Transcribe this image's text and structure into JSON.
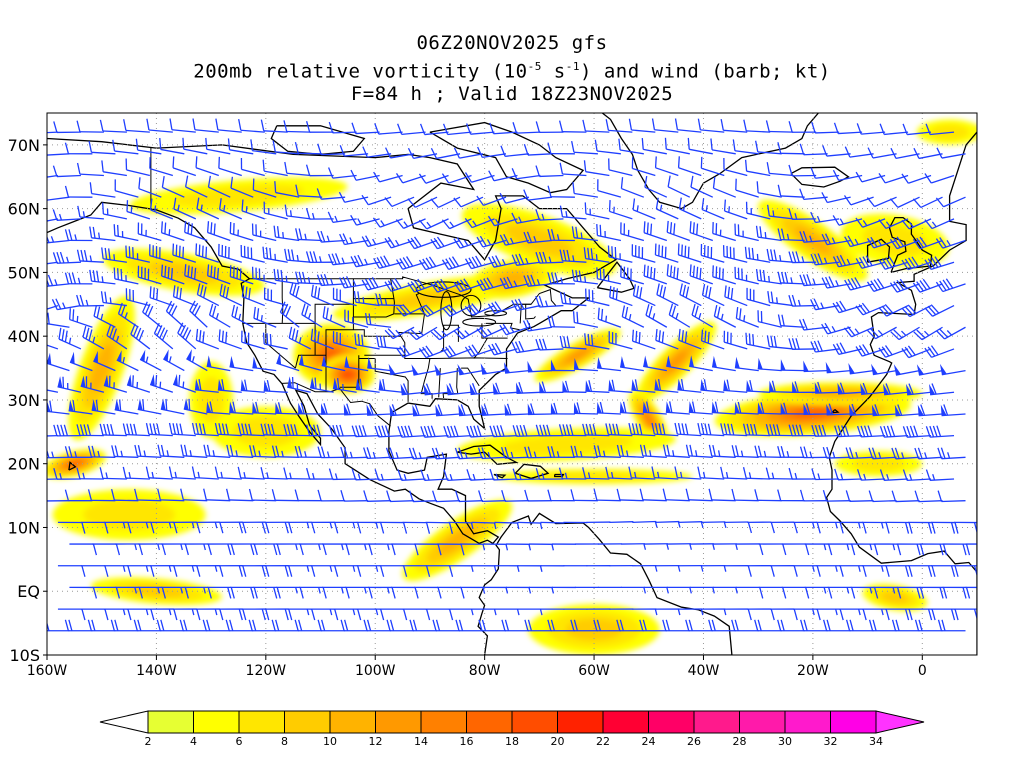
{
  "title": {
    "line1": "06Z20NOV2025 gfs",
    "line2_pre": "200mb relative vorticity (10",
    "line2_exp1": "-5",
    "line2_mid": " s",
    "line2_exp2": "-1",
    "line2_post": ") and wind (barb; kt)",
    "line3": "F=84 h ; Valid 18Z23NOV2025"
  },
  "map": {
    "lon_range": [
      -160,
      10
    ],
    "lat_range": [
      -10,
      75
    ],
    "lat_ticks": [
      {
        "value": 70,
        "label": "70N"
      },
      {
        "value": 60,
        "label": "60N"
      },
      {
        "value": 50,
        "label": "50N"
      },
      {
        "value": 40,
        "label": "40N"
      },
      {
        "value": 30,
        "label": "30N"
      },
      {
        "value": 20,
        "label": "20N"
      },
      {
        "value": 10,
        "label": "10N"
      },
      {
        "value": 0,
        "label": "EQ"
      },
      {
        "value": -10,
        "label": "10S"
      }
    ],
    "lon_ticks": [
      {
        "value": -160,
        "label": "160W"
      },
      {
        "value": -140,
        "label": "140W"
      },
      {
        "value": -120,
        "label": "120W"
      },
      {
        "value": -100,
        "label": "100W"
      },
      {
        "value": -80,
        "label": "80W"
      },
      {
        "value": -60,
        "label": "60W"
      },
      {
        "value": -40,
        "label": "40W"
      },
      {
        "value": -20,
        "label": "20W"
      },
      {
        "value": 0,
        "label": "0"
      }
    ],
    "barb_color": "#1f3fff",
    "coast_color": "#000000",
    "grid_color": "#9a9a9a"
  },
  "colorbar": {
    "levels": [
      "2",
      "4",
      "6",
      "8",
      "10",
      "12",
      "14",
      "16",
      "18",
      "20",
      "22",
      "24",
      "26",
      "28",
      "30",
      "32",
      "34"
    ],
    "colors": [
      "#ffffff",
      "#e6ff33",
      "#ffff00",
      "#ffe600",
      "#ffcc00",
      "#ffb300",
      "#ff9900",
      "#ff8000",
      "#ff6600",
      "#ff4d00",
      "#ff2200",
      "#ff0033",
      "#ff0066",
      "#ff1a8c",
      "#ff1aaa",
      "#ff1acc",
      "#ff00e6",
      "#ff33ff"
    ]
  },
  "vorticity_features": [
    {
      "lon": -108,
      "lat": 37,
      "rx": 7,
      "ry": 5,
      "rot": 0,
      "v": 16
    },
    {
      "lon": -105,
      "lat": 34,
      "rx": 5,
      "ry": 3,
      "rot": 0,
      "v": 18
    },
    {
      "lon": -155,
      "lat": 20,
      "rx": 6,
      "ry": 2,
      "rot": -15,
      "v": 16
    },
    {
      "lon": -135,
      "lat": 50,
      "rx": 15,
      "ry": 3,
      "rot": 10,
      "v": 8
    },
    {
      "lon": -125,
      "lat": 62,
      "rx": 20,
      "ry": 2.5,
      "rot": -5,
      "v": 6
    },
    {
      "lon": -150,
      "lat": 35,
      "rx": 4,
      "ry": 12,
      "rot": 20,
      "v": 10
    },
    {
      "lon": -90,
      "lat": 46,
      "rx": 18,
      "ry": 2.5,
      "rot": -10,
      "v": 8
    },
    {
      "lon": -70,
      "lat": 55,
      "rx": 15,
      "ry": 4,
      "rot": 20,
      "v": 8
    },
    {
      "lon": -75,
      "lat": 49,
      "rx": 8,
      "ry": 3,
      "rot": -10,
      "v": 10
    },
    {
      "lon": -63,
      "lat": 37,
      "rx": 9,
      "ry": 2,
      "rot": -30,
      "v": 12
    },
    {
      "lon": -45,
      "lat": 36,
      "rx": 10,
      "ry": 2.5,
      "rot": -45,
      "v": 12
    },
    {
      "lon": -50,
      "lat": 27,
      "rx": 6,
      "ry": 2,
      "rot": 60,
      "v": 14
    },
    {
      "lon": -20,
      "lat": 28,
      "rx": 18,
      "ry": 3.5,
      "rot": -5,
      "v": 16
    },
    {
      "lon": -15,
      "lat": 31,
      "rx": 15,
      "ry": 1.8,
      "rot": 0,
      "v": 10
    },
    {
      "lon": -65,
      "lat": 23,
      "rx": 20,
      "ry": 2.5,
      "rot": -3,
      "v": 6
    },
    {
      "lon": -60,
      "lat": 18,
      "rx": 18,
      "ry": 1.2,
      "rot": 0,
      "v": 6
    },
    {
      "lon": -20,
      "lat": 55,
      "rx": 12,
      "ry": 3,
      "rot": 35,
      "v": 10
    },
    {
      "lon": -5,
      "lat": 55,
      "rx": 10,
      "ry": 4,
      "rot": 10,
      "v": 6
    },
    {
      "lon": -85,
      "lat": 8,
      "rx": 12,
      "ry": 3,
      "rot": -35,
      "v": 10
    },
    {
      "lon": -140,
      "lat": 0,
      "rx": 12,
      "ry": 2,
      "rot": 5,
      "v": 8
    },
    {
      "lon": -145,
      "lat": 12,
      "rx": 14,
      "ry": 4,
      "rot": 0,
      "v": 6
    },
    {
      "lon": -60,
      "lat": -6,
      "rx": 12,
      "ry": 4,
      "rot": 0,
      "v": 8
    },
    {
      "lon": -5,
      "lat": -1,
      "rx": 6,
      "ry": 2,
      "rot": 10,
      "v": 8
    },
    {
      "lon": -120,
      "lat": 25,
      "rx": 10,
      "ry": 4,
      "rot": 0,
      "v": 6
    },
    {
      "lon": -8,
      "lat": 20,
      "rx": 8,
      "ry": 2,
      "rot": 0,
      "v": 6
    },
    {
      "lon": 5,
      "lat": 72,
      "rx": 6,
      "ry": 2,
      "rot": 0,
      "v": 6
    },
    {
      "lon": -130,
      "lat": 30,
      "rx": 4,
      "ry": 6,
      "rot": 0,
      "v": 6
    }
  ]
}
